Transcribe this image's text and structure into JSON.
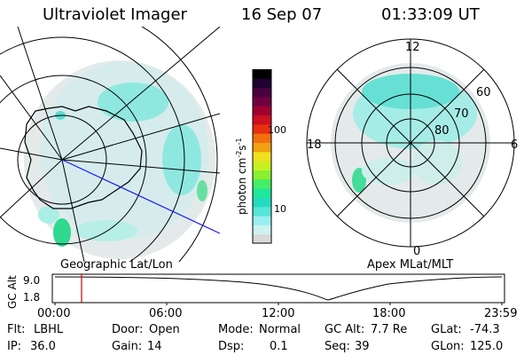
{
  "header": {
    "instrument": "Ultraviolet Imager",
    "date": "16 Sep 07",
    "time": "01:33:09 UT"
  },
  "left_map": {
    "caption": "Geographic Lat/Lon"
  },
  "right_map": {
    "caption": "Apex MLat/MLT",
    "mlt_labels": {
      "top": "12",
      "left": "18",
      "right": "6",
      "bottom": "0"
    },
    "lat_labels": [
      "60",
      "70",
      "80"
    ]
  },
  "colorbar": {
    "label": "photon cm",
    "label_sup1": "-2",
    "label_mid": "s",
    "label_sup2": "-1",
    "ticks": [
      "100",
      "10"
    ],
    "colors": [
      "#d9d9d9",
      "#ccf2f2",
      "#99eef0",
      "#55e6d6",
      "#22dcc0",
      "#20e89a",
      "#44ee66",
      "#88f030",
      "#c8f020",
      "#f0e020",
      "#f0a010",
      "#f07010",
      "#e83010",
      "#cc1020",
      "#a00030",
      "#700040",
      "#480040",
      "#200030",
      "#000000"
    ]
  },
  "altitude_plot": {
    "axis_label": "GC Alt",
    "y_ticks": [
      "9.0",
      "1.8"
    ],
    "x_ticks": [
      "00:00",
      "06:00",
      "12:00",
      "18:00",
      "23:59"
    ],
    "marker_color": "#cc0000"
  },
  "status": {
    "row1": [
      {
        "key": "Flt:",
        "value": "LBHL"
      },
      {
        "key": "Door:",
        "value": "Open"
      },
      {
        "key": "Mode:",
        "value": "Normal"
      },
      {
        "key": "GC Alt:",
        "value": "7.7 Re"
      },
      {
        "key": "GLat:",
        "value": "-74.3"
      }
    ],
    "row2": [
      {
        "key": "IP:",
        "value": "36.0"
      },
      {
        "key": "Gain:",
        "value": "14"
      },
      {
        "key": "Dsp:",
        "value": "0.1"
      },
      {
        "key": "Seq:",
        "value": "39"
      },
      {
        "key": "GLon:",
        "value": "125.0"
      }
    ]
  }
}
